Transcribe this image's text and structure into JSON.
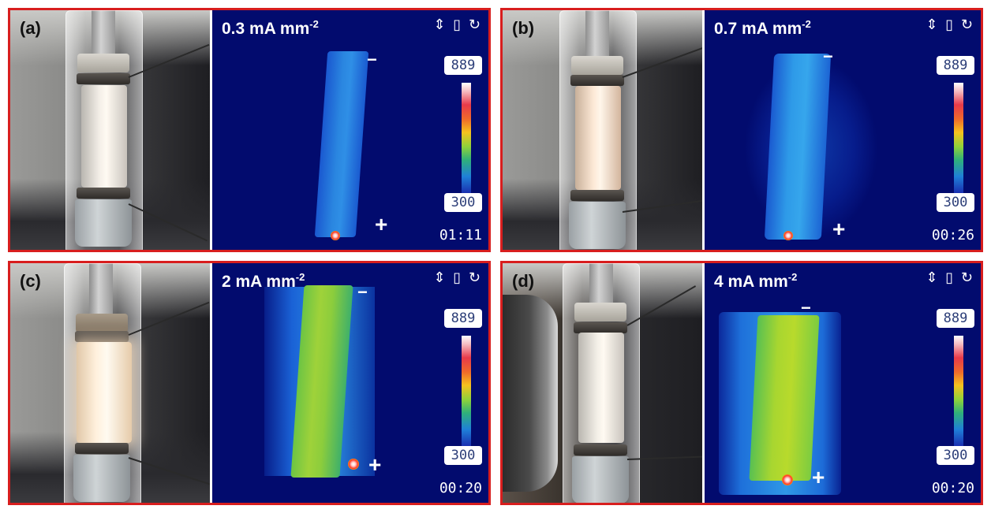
{
  "panels": [
    {
      "label": "(a)",
      "current_value": "0.3 mA mm",
      "current_exp": "-2",
      "scale_max": "889",
      "scale_min": "300",
      "time": "01:11",
      "minus": "−",
      "plus": "+",
      "icons": "⇕ ▯ ↻"
    },
    {
      "label": "(b)",
      "current_value": "0.7 mA mm",
      "current_exp": "-2",
      "scale_max": "889",
      "scale_min": "300",
      "time": "00:26",
      "minus": "−",
      "plus": "+",
      "icons": "⇕ ▯ ↻"
    },
    {
      "label": "(c)",
      "current_value": "2 mA mm",
      "current_exp": "-2",
      "scale_max": "889",
      "scale_min": "300",
      "time": "00:20",
      "minus": "−",
      "plus": "+",
      "icons": "⇕ ▯ ↻"
    },
    {
      "label": "(d)",
      "current_value": "4 mA mm",
      "current_exp": "-2",
      "scale_max": "889",
      "scale_min": "300",
      "time": "00:20",
      "minus": "−",
      "plus": "+",
      "icons": "⇕ ▯ ↻"
    }
  ],
  "colors": {
    "frame": "#d81e1e",
    "thermal_background": "#020b6e",
    "strip_cool": "#1f80d8",
    "strip_warm": "#9fd23a"
  }
}
